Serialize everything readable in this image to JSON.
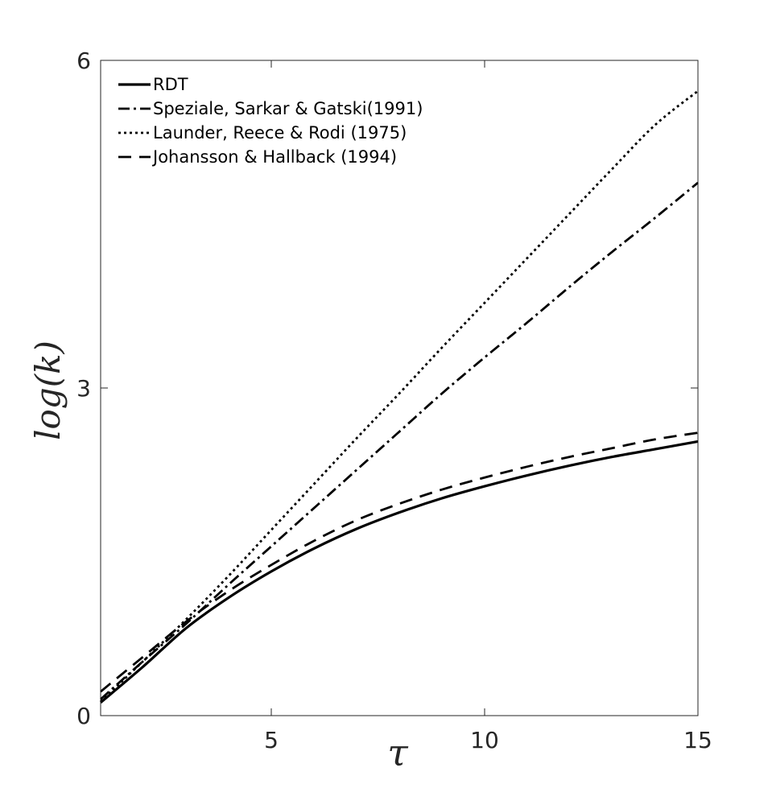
{
  "chart_data": {
    "type": "line",
    "title": "",
    "xlabel": "τ",
    "ylabel": "log(k)",
    "xlim": [
      1,
      15
    ],
    "ylim": [
      0,
      6
    ],
    "xticks": [
      5,
      10,
      15
    ],
    "yticks": [
      0,
      3,
      6
    ],
    "xtick_labels": [
      "5",
      "10",
      "15"
    ],
    "ytick_labels": [
      "0",
      "3",
      "6"
    ],
    "grid": false,
    "legend_position": "top-left",
    "series": [
      {
        "name": "RDT",
        "line_style": "solid",
        "color": "#000000",
        "x": [
          1,
          2,
          3,
          4,
          5,
          6,
          7,
          8,
          9,
          10,
          11,
          12,
          13,
          14,
          15
        ],
        "y": [
          0.12,
          0.45,
          0.8,
          1.08,
          1.32,
          1.53,
          1.71,
          1.86,
          1.99,
          2.1,
          2.2,
          2.29,
          2.37,
          2.44,
          2.51
        ]
      },
      {
        "name": "Speziale, Sarkar & Gatski(1991)",
        "line_style": "dashdot",
        "color": "#000000",
        "x": [
          1,
          2,
          3,
          4,
          5,
          6,
          7,
          8,
          9,
          10,
          11,
          12,
          13,
          14,
          15
        ],
        "y": [
          0.15,
          0.5,
          0.84,
          1.2,
          1.55,
          1.9,
          2.25,
          2.6,
          2.95,
          3.28,
          3.6,
          3.93,
          4.25,
          4.56,
          4.88
        ]
      },
      {
        "name": "Launder, Reece & Rodi (1975)",
        "line_style": "dotted",
        "color": "#000000",
        "x": [
          1,
          2,
          3,
          4,
          5,
          6,
          7,
          8,
          9,
          10,
          11,
          12,
          13,
          14,
          15
        ],
        "y": [
          0.13,
          0.5,
          0.88,
          1.28,
          1.7,
          2.12,
          2.54,
          2.95,
          3.37,
          3.78,
          4.19,
          4.6,
          5.01,
          5.41,
          5.72
        ]
      },
      {
        "name": "Johansson & Hallback (1994)",
        "line_style": "dashed",
        "color": "#000000",
        "x": [
          1,
          2,
          3,
          4,
          5,
          6,
          7,
          8,
          9,
          10,
          11,
          12,
          13,
          14,
          15
        ],
        "y": [
          0.22,
          0.54,
          0.86,
          1.14,
          1.38,
          1.6,
          1.79,
          1.94,
          2.07,
          2.18,
          2.28,
          2.37,
          2.45,
          2.53,
          2.59
        ]
      }
    ]
  }
}
